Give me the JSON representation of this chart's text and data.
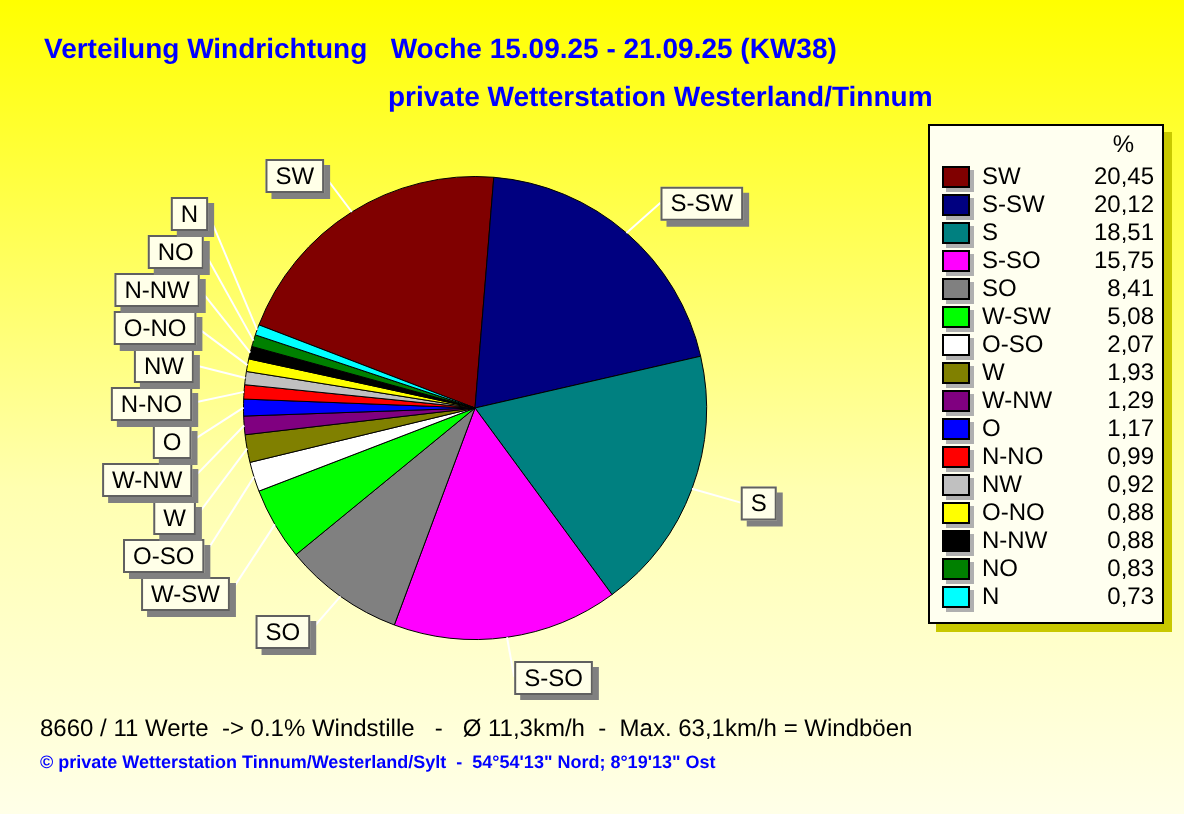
{
  "chart_data": {
    "type": "pie",
    "title": "Verteilung Windrichtung   Woche 15.09.25 - 21.09.25 (KW38)",
    "subtitle": "private Wetterstation Westerland/Tinnum",
    "legend_title": "%",
    "categories": [
      "SW",
      "S-SW",
      "S",
      "S-SO",
      "SO",
      "W-SW",
      "O-SO",
      "W",
      "W-NW",
      "O",
      "N-NO",
      "NW",
      "O-NO",
      "N-NW",
      "NO",
      "N"
    ],
    "values": [
      20.45,
      20.12,
      18.51,
      15.75,
      8.41,
      5.08,
      2.07,
      1.93,
      1.29,
      1.17,
      0.99,
      0.92,
      0.88,
      0.88,
      0.83,
      0.73
    ],
    "colors": [
      "#800000",
      "#000080",
      "#008080",
      "#ff00ff",
      "#808080",
      "#00ff00",
      "#ffffff",
      "#808000",
      "#800080",
      "#0000ff",
      "#ff0000",
      "#c0c0c0",
      "#ffff00",
      "#000000",
      "#008000",
      "#00ffff"
    ],
    "value_labels": [
      "20,45",
      "20,12",
      "18,51",
      "15,75",
      "8,41",
      "5,08",
      "2,07",
      "1,93",
      "1,29",
      "1,17",
      "0,99",
      "0,92",
      "0,88",
      "0,88",
      "0,83",
      "0,73"
    ],
    "legend": "right",
    "annotations": [
      "8660 / 11 Werte  -> 0.1% Windstille   -   Ø 11,3km/h  -  Max. 63,1km/h = Windböen",
      "© private Wetterstation Tinnum/Westerland/Sylt  -  54°54'13\" Nord; 8°19'13\" Ost"
    ]
  }
}
